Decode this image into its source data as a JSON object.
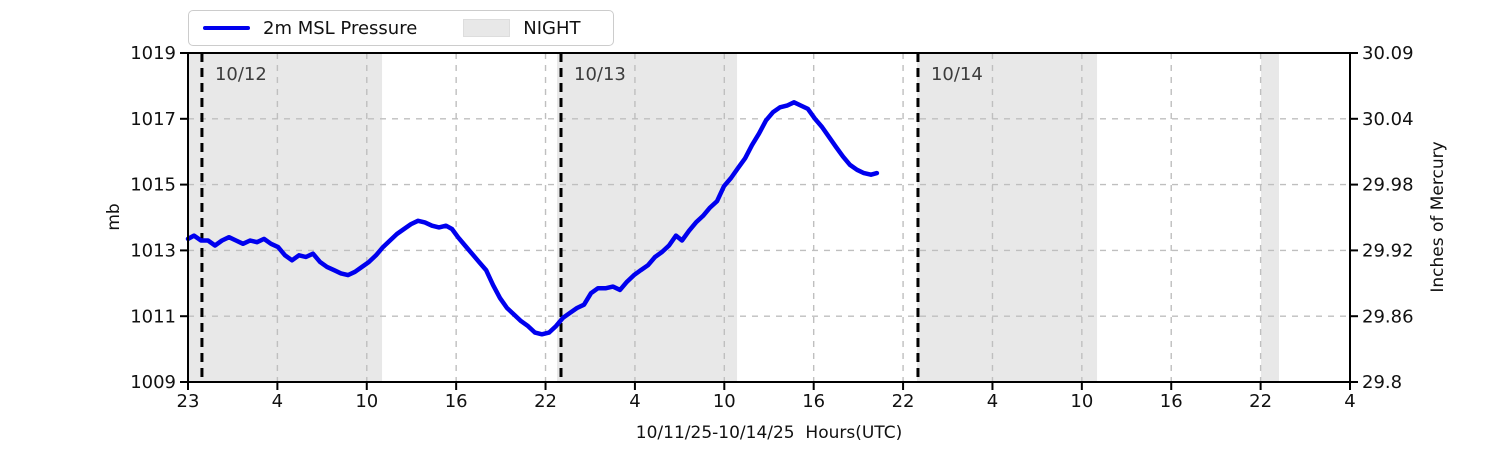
{
  "chart_data": {
    "type": "line",
    "xlabel": "10/11/25-10/14/25  Hours(UTC)",
    "ylabel_left": "mb",
    "ylabel_right": "Inches of Mercury",
    "ylim_left": [
      1009,
      1019
    ],
    "y_ticks_left": [
      "1019",
      "1017",
      "1015",
      "1013",
      "1011",
      "1009"
    ],
    "y_ticks_left_values": [
      1019,
      1017,
      1015,
      1013,
      1011,
      1009
    ],
    "y_ticks_right": [
      "30.09",
      "30.04",
      "29.98",
      "29.92",
      "29.86",
      "29.8"
    ],
    "x_tick_labels": [
      "23",
      "4",
      "10",
      "16",
      "22",
      "4",
      "10",
      "16",
      "22",
      "4",
      "10",
      "16",
      "22",
      "4"
    ],
    "grid": true,
    "legend": [
      {
        "label": "2m MSL Pressure",
        "type": "line",
        "color": "#0000ee"
      },
      {
        "label": "NIGHT",
        "type": "patch",
        "color": "#e8e8e8"
      }
    ],
    "night_bands": [
      {
        "start": 0.0,
        "end": 0.167
      },
      {
        "start": 0.3176,
        "end": 0.4725
      },
      {
        "start": 0.6274,
        "end": 0.7823
      },
      {
        "start": 0.9234,
        "end": 0.9389
      }
    ],
    "date_lines": [
      {
        "label": "10/12",
        "pos": 0.012
      },
      {
        "label": "10/13",
        "pos": 0.321
      },
      {
        "label": "10/14",
        "pos": 0.6282
      }
    ],
    "series": [
      {
        "name": "2m MSL Pressure",
        "color": "#0000ee",
        "points": [
          [
            0.0,
            1013.35
          ],
          [
            0.0052,
            1013.45
          ],
          [
            0.0112,
            1013.3
          ],
          [
            0.0172,
            1013.3
          ],
          [
            0.0232,
            1013.15
          ],
          [
            0.0293,
            1013.3
          ],
          [
            0.0353,
            1013.4
          ],
          [
            0.0413,
            1013.3
          ],
          [
            0.0473,
            1013.2
          ],
          [
            0.0534,
            1013.3
          ],
          [
            0.0594,
            1013.25
          ],
          [
            0.0654,
            1013.35
          ],
          [
            0.0714,
            1013.2
          ],
          [
            0.0775,
            1013.1
          ],
          [
            0.0835,
            1012.85
          ],
          [
            0.0895,
            1012.7
          ],
          [
            0.0955,
            1012.85
          ],
          [
            0.1015,
            1012.8
          ],
          [
            0.1076,
            1012.9
          ],
          [
            0.1136,
            1012.65
          ],
          [
            0.1196,
            1012.5
          ],
          [
            0.1256,
            1012.4
          ],
          [
            0.1317,
            1012.3
          ],
          [
            0.1377,
            1012.25
          ],
          [
            0.1437,
            1012.35
          ],
          [
            0.1497,
            1012.5
          ],
          [
            0.1558,
            1012.65
          ],
          [
            0.1618,
            1012.85
          ],
          [
            0.1678,
            1013.1
          ],
          [
            0.1738,
            1013.3
          ],
          [
            0.1798,
            1013.5
          ],
          [
            0.1859,
            1013.65
          ],
          [
            0.1919,
            1013.8
          ],
          [
            0.1979,
            1013.9
          ],
          [
            0.2039,
            1013.85
          ],
          [
            0.21,
            1013.75
          ],
          [
            0.216,
            1013.7
          ],
          [
            0.222,
            1013.75
          ],
          [
            0.2272,
            1013.65
          ],
          [
            0.2324,
            1013.4
          ],
          [
            0.2384,
            1013.15
          ],
          [
            0.2444,
            1012.9
          ],
          [
            0.2504,
            1012.65
          ],
          [
            0.2565,
            1012.4
          ],
          [
            0.2625,
            1011.95
          ],
          [
            0.2685,
            1011.55
          ],
          [
            0.2745,
            1011.25
          ],
          [
            0.2806,
            1011.05
          ],
          [
            0.2866,
            1010.85
          ],
          [
            0.2926,
            1010.7
          ],
          [
            0.2986,
            1010.5
          ],
          [
            0.3046,
            1010.45
          ],
          [
            0.3107,
            1010.5
          ],
          [
            0.3167,
            1010.7
          ],
          [
            0.3227,
            1010.95
          ],
          [
            0.3287,
            1011.1
          ],
          [
            0.3348,
            1011.25
          ],
          [
            0.3408,
            1011.35
          ],
          [
            0.3468,
            1011.7
          ],
          [
            0.3528,
            1011.85
          ],
          [
            0.3597,
            1011.85
          ],
          [
            0.3657,
            1011.9
          ],
          [
            0.3718,
            1011.8
          ],
          [
            0.3778,
            1012.05
          ],
          [
            0.3838,
            1012.25
          ],
          [
            0.3898,
            1012.4
          ],
          [
            0.3959,
            1012.55
          ],
          [
            0.4019,
            1012.8
          ],
          [
            0.4079,
            1012.95
          ],
          [
            0.4139,
            1013.15
          ],
          [
            0.42,
            1013.45
          ],
          [
            0.4251,
            1013.3
          ],
          [
            0.4312,
            1013.6
          ],
          [
            0.4372,
            1013.85
          ],
          [
            0.4432,
            1014.05
          ],
          [
            0.4492,
            1014.3
          ],
          [
            0.4553,
            1014.5
          ],
          [
            0.4613,
            1014.95
          ],
          [
            0.4673,
            1015.2
          ],
          [
            0.4733,
            1015.5
          ],
          [
            0.4794,
            1015.8
          ],
          [
            0.4854,
            1016.2
          ],
          [
            0.4914,
            1016.55
          ],
          [
            0.4974,
            1016.95
          ],
          [
            0.5034,
            1017.2
          ],
          [
            0.5095,
            1017.35
          ],
          [
            0.5155,
            1017.4
          ],
          [
            0.5215,
            1017.5
          ],
          [
            0.5275,
            1017.4
          ],
          [
            0.5335,
            1017.3
          ],
          [
            0.5396,
            1017.0
          ],
          [
            0.5456,
            1016.75
          ],
          [
            0.5516,
            1016.45
          ],
          [
            0.5576,
            1016.15
          ],
          [
            0.5637,
            1015.85
          ],
          [
            0.5697,
            1015.6
          ],
          [
            0.5757,
            1015.45
          ],
          [
            0.5817,
            1015.35
          ],
          [
            0.5878,
            1015.3
          ],
          [
            0.5929,
            1015.35
          ]
        ]
      }
    ],
    "colors": {
      "line": "#0000ee",
      "night_band": "#e8e8e8",
      "grid": "#bfbfbf",
      "date_line": "#000000",
      "date_label": "#3d3d3d",
      "spine": "#000000"
    }
  }
}
